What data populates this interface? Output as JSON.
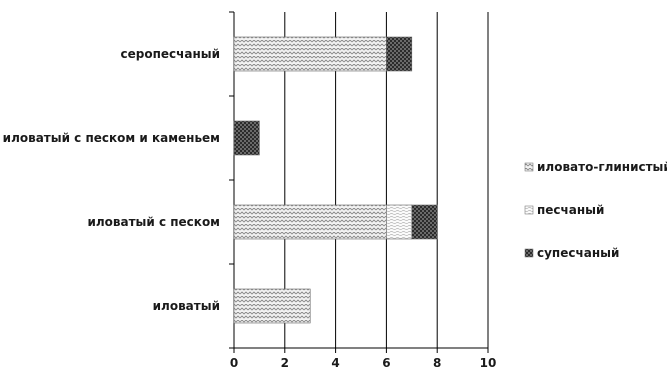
{
  "chart_data": {
    "type": "bar",
    "orientation": "horizontal",
    "stacked": true,
    "categories": [
      "иловатый",
      "иловатый с песком",
      "иловатый с песком и каменьем",
      "серопесчаный"
    ],
    "series": [
      {
        "name": "иловато-глинистый",
        "values": [
          3,
          6,
          0,
          6
        ],
        "pattern": "weave-light"
      },
      {
        "name": "песчаный",
        "values": [
          0,
          1,
          0,
          0
        ],
        "pattern": "wave-light"
      },
      {
        "name": "супесчаный",
        "values": [
          0,
          1,
          1,
          1
        ],
        "pattern": "dark-check"
      }
    ],
    "xlim": [
      0,
      10
    ],
    "x_ticks": [
      0,
      2,
      4,
      6,
      8,
      10
    ],
    "grid": true,
    "legend_position": "right",
    "colors": {
      "bar_light": "#f2f2f2",
      "bar_dark": "#2b2b2b",
      "grid": "#000000"
    }
  }
}
